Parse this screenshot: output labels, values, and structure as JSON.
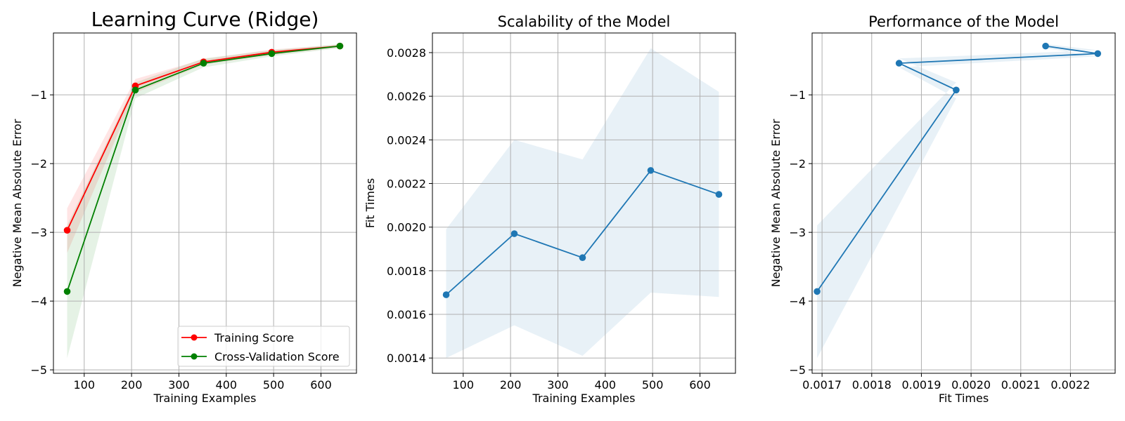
{
  "chart_data": [
    {
      "type": "line",
      "title": "Learning Curve (Ridge)",
      "xlabel": "Training Examples",
      "ylabel": "Negative Mean Absolute Error",
      "xlim": [
        35,
        675
      ],
      "ylim": [
        -5.05,
        -0.1
      ],
      "xticks": [
        100,
        200,
        300,
        400,
        500,
        600
      ],
      "yticks": [
        -5,
        -4,
        -3,
        -2,
        -1
      ],
      "ytick_labels": [
        "−5",
        "−4",
        "−3",
        "−2",
        "−1"
      ],
      "grid": true,
      "legend": "lower-right",
      "x": [
        64,
        208,
        352,
        496,
        640
      ],
      "series": [
        {
          "name": "Training Score",
          "color": "#ff0000",
          "values": [
            -2.97,
            -0.87,
            -0.52,
            -0.38,
            -0.29
          ],
          "band_lower": [
            -3.3,
            -0.97,
            -0.56,
            -0.42,
            -0.31
          ],
          "band_upper": [
            -2.65,
            -0.77,
            -0.48,
            -0.34,
            -0.27
          ]
        },
        {
          "name": "Cross-Validation Score",
          "color": "#008000",
          "values": [
            -3.86,
            -0.93,
            -0.54,
            -0.4,
            -0.29
          ],
          "band_lower": [
            -4.83,
            -1.05,
            -0.6,
            -0.44,
            -0.32
          ],
          "band_upper": [
            -2.9,
            -0.82,
            -0.47,
            -0.35,
            -0.26
          ]
        }
      ]
    },
    {
      "type": "line",
      "title": "Scalability of the Model",
      "xlabel": "Training Examples",
      "ylabel": "Fit Times",
      "xlim": [
        35,
        675
      ],
      "ylim": [
        0.00133,
        0.00289
      ],
      "xticks": [
        100,
        200,
        300,
        400,
        500,
        600
      ],
      "yticks": [
        0.0014,
        0.0016,
        0.0018,
        0.002,
        0.0022,
        0.0024,
        0.0026,
        0.0028
      ],
      "ytick_labels": [
        "0.0014",
        "0.0016",
        "0.0018",
        "0.0020",
        "0.0022",
        "0.0024",
        "0.0026",
        "0.0028"
      ],
      "grid": true,
      "x": [
        64,
        208,
        352,
        496,
        640
      ],
      "series": [
        {
          "color": "#1f77b4",
          "values": [
            0.00169,
            0.00197,
            0.00186,
            0.00226,
            0.00215
          ],
          "band_lower": [
            0.0014,
            0.00155,
            0.00141,
            0.0017,
            0.00168
          ],
          "band_upper": [
            0.00199,
            0.0024,
            0.00231,
            0.00282,
            0.00262
          ]
        }
      ]
    },
    {
      "type": "line",
      "title": "Performance of the Model",
      "xlabel": "Fit Times",
      "ylabel": "Negative Mean Absolute Error",
      "xlim": [
        0.00168,
        0.00229
      ],
      "ylim": [
        -5.05,
        -0.1
      ],
      "xticks": [
        0.0017,
        0.0018,
        0.0019,
        0.002,
        0.0021,
        0.0022
      ],
      "xtick_labels": [
        "0.0017",
        "0.0018",
        "0.0019",
        "0.0020",
        "0.0021",
        "0.0022"
      ],
      "yticks": [
        -5,
        -4,
        -3,
        -2,
        -1
      ],
      "ytick_labels": [
        "−5",
        "−4",
        "−3",
        "−2",
        "−1"
      ],
      "grid": true,
      "series": [
        {
          "color": "#1f77b4",
          "x": [
            0.00169,
            0.00197,
            0.001855,
            0.002255,
            0.00215
          ],
          "values": [
            -3.86,
            -0.93,
            -0.54,
            -0.4,
            -0.29
          ],
          "band_lower": [
            -4.83,
            -1.05,
            -0.6,
            -0.44,
            -0.32
          ],
          "band_upper": [
            -2.9,
            -0.82,
            -0.47,
            -0.35,
            -0.26
          ]
        }
      ]
    }
  ]
}
